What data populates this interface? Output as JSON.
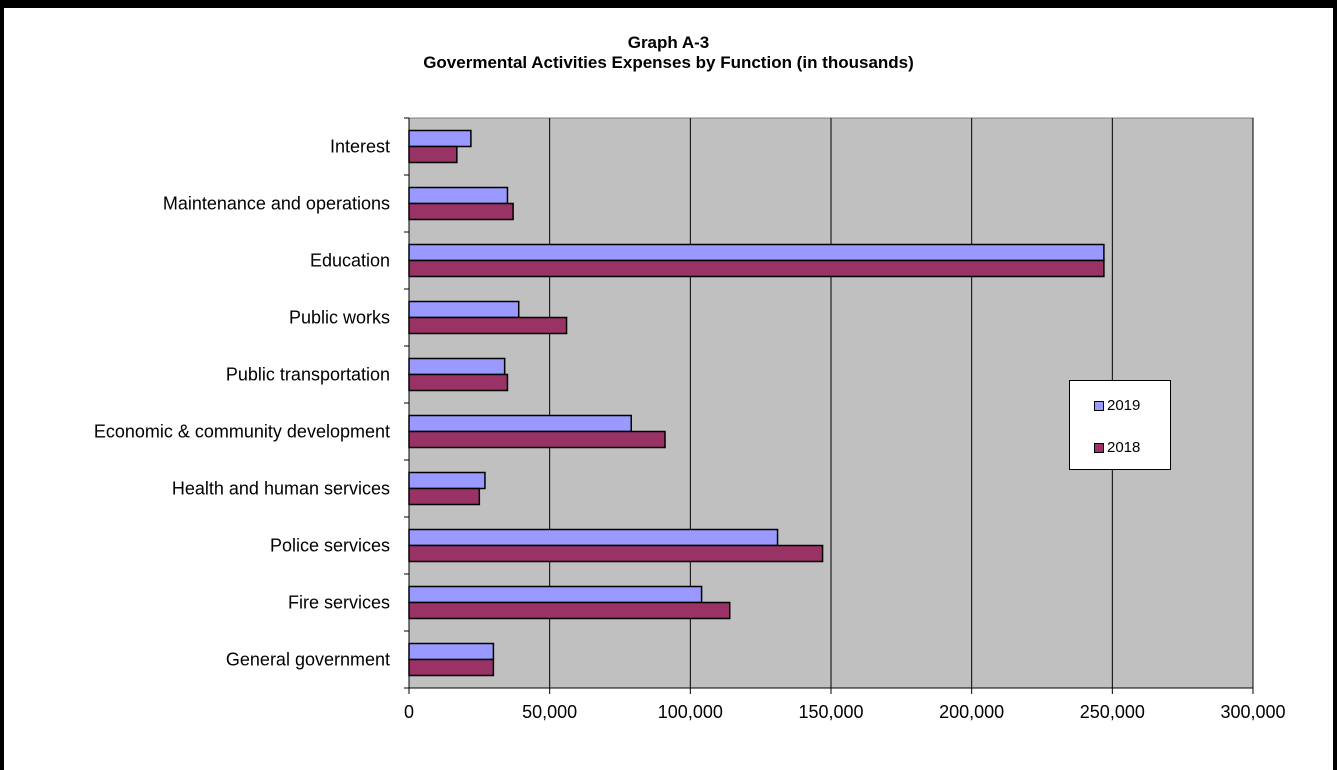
{
  "chart_data": {
    "type": "bar",
    "orientation": "horizontal",
    "title": "Graph A-3",
    "subtitle": "Govermental Activities Expenses by Function (in thousands)",
    "categories": [
      "Interest",
      "Maintenance and operations",
      "Education",
      "Public works",
      "Public transportation",
      "Economic & community development",
      "Health and human services",
      "Police services",
      "Fire services",
      "General government"
    ],
    "series": [
      {
        "name": "2019",
        "color": "#9999ff",
        "values": [
          22000,
          35000,
          247000,
          39000,
          34000,
          79000,
          27000,
          131000,
          104000,
          30000
        ]
      },
      {
        "name": "2018",
        "color": "#993366",
        "values": [
          17000,
          37000,
          247000,
          56000,
          35000,
          91000,
          25000,
          147000,
          114000,
          30000
        ]
      }
    ],
    "xlim": [
      0,
      300000
    ],
    "xticks": [
      "0",
      "50,000",
      "100,000",
      "150,000",
      "200,000",
      "250,000",
      "300,000"
    ],
    "xlabel": "",
    "ylabel": "",
    "grid": "vertical",
    "plot_background": "#c0c0c0",
    "legend": "right"
  }
}
